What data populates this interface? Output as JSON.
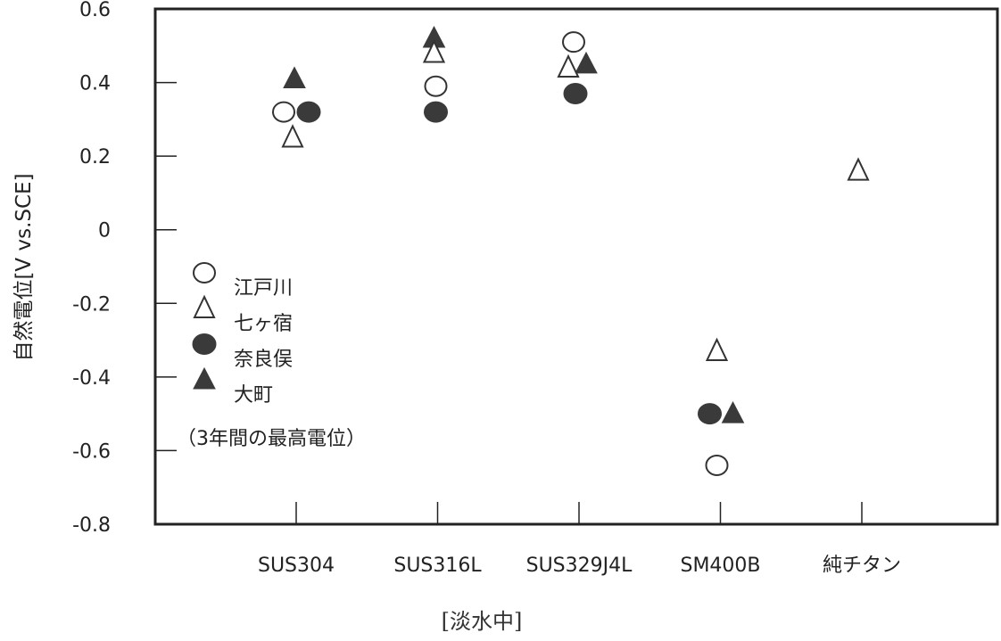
{
  "chart_data": {
    "type": "scatter",
    "ylabel": "自然電位[V vs.SCE]",
    "xlabel": "[淡水中]",
    "ylim": [
      -0.8,
      0.6
    ],
    "yticks": [
      "0.6",
      "0.4",
      "0.2",
      "0",
      "-0.2",
      "-0.4",
      "-0.6",
      "-0.8"
    ],
    "ytick_values": [
      0.6,
      0.4,
      0.2,
      0,
      -0.2,
      -0.4,
      -0.6,
      -0.8
    ],
    "categories": [
      "SUS304",
      "SUS316L",
      "SUS329J4L",
      "SM400B",
      "純チタン"
    ],
    "legend": {
      "placement": "center-left inside",
      "note": "（3年間の最高電位）"
    },
    "series": [
      {
        "name": "江戸川",
        "marker": "circle-open",
        "points": [
          {
            "x": "SUS304",
            "y": 0.32
          },
          {
            "x": "SUS316L",
            "y": 0.39
          },
          {
            "x": "SUS329J4L",
            "y": 0.51
          },
          {
            "x": "SM400B",
            "y": -0.64
          }
        ]
      },
      {
        "name": "七ヶ宿",
        "marker": "triangle-open",
        "points": [
          {
            "x": "SUS304",
            "y": 0.25
          },
          {
            "x": "SUS316L",
            "y": 0.48
          },
          {
            "x": "SUS329J4L",
            "y": 0.44
          },
          {
            "x": "SM400B",
            "y": -0.33
          },
          {
            "x": "純チタン",
            "y": 0.16
          }
        ]
      },
      {
        "name": "奈良俣",
        "marker": "circle-filled",
        "points": [
          {
            "x": "SUS304",
            "y": 0.32
          },
          {
            "x": "SUS316L",
            "y": 0.32
          },
          {
            "x": "SUS329J4L",
            "y": 0.37
          },
          {
            "x": "SM400B",
            "y": -0.5
          }
        ]
      },
      {
        "name": "大町",
        "marker": "triangle-filled",
        "points": [
          {
            "x": "SUS304",
            "y": 0.41
          },
          {
            "x": "SUS316L",
            "y": 0.52
          },
          {
            "x": "SUS329J4L",
            "y": 0.45
          },
          {
            "x": "SM400B",
            "y": -0.5
          }
        ]
      }
    ],
    "colors": {
      "marker_fill": "#3a3a3a",
      "axis": "#222222"
    }
  }
}
